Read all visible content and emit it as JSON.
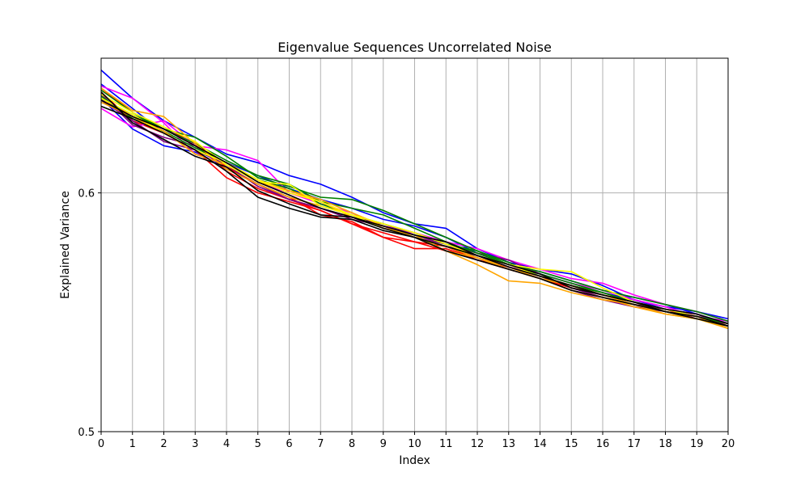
{
  "chart_data": {
    "type": "line",
    "title": "Eigenvalue Sequences Uncorrelated Noise",
    "xlabel": "Index",
    "ylabel": "Explained Variance",
    "xlim": [
      0,
      20
    ],
    "ylim": [
      0.5,
      0.665
    ],
    "yscale": "log",
    "x_ticks": [
      0,
      1,
      2,
      3,
      4,
      5,
      6,
      7,
      8,
      9,
      10,
      11,
      12,
      13,
      14,
      15,
      16,
      17,
      18,
      19,
      20
    ],
    "y_ticks": [
      0.5,
      0.6
    ],
    "y_tick_labels": [
      "0.5",
      "0.6"
    ],
    "grid": true,
    "legend": "none",
    "x": [
      0,
      1,
      2,
      3,
      4,
      5,
      6,
      7,
      8,
      9,
      10,
      11,
      12,
      13,
      14,
      15,
      16,
      17,
      18,
      19,
      20
    ],
    "series": [
      {
        "color": "#0000ff",
        "values": [
          0.659,
          0.645,
          0.634,
          0.626,
          0.618,
          0.614,
          0.608,
          0.604,
          0.598,
          0.591,
          0.586,
          0.584,
          0.575,
          0.569,
          0.566,
          0.564,
          0.559,
          0.553,
          0.55,
          0.548,
          0.545
        ]
      },
      {
        "color": "#0000ff",
        "values": [
          0.652,
          0.64,
          0.628,
          0.62,
          0.614,
          0.608,
          0.602,
          0.597,
          0.593,
          0.588,
          0.585,
          0.58,
          0.573,
          0.568,
          0.565,
          0.561,
          0.557,
          0.554,
          0.551,
          0.547,
          0.543
        ]
      },
      {
        "color": "#0000ff",
        "values": [
          0.645,
          0.63,
          0.622,
          0.619,
          0.612,
          0.604,
          0.598,
          0.594,
          0.59,
          0.584,
          0.58,
          0.576,
          0.572,
          0.567,
          0.564,
          0.56,
          0.556,
          0.553,
          0.549,
          0.546,
          0.543
        ]
      },
      {
        "color": "#ff0000",
        "values": [
          0.65,
          0.638,
          0.63,
          0.622,
          0.612,
          0.604,
          0.598,
          0.59,
          0.587,
          0.58,
          0.575,
          0.575,
          0.57,
          0.567,
          0.563,
          0.558,
          0.555,
          0.552,
          0.549,
          0.546,
          0.543
        ]
      },
      {
        "color": "#ff0000",
        "values": [
          0.645,
          0.636,
          0.63,
          0.624,
          0.61,
          0.602,
          0.597,
          0.592,
          0.586,
          0.582,
          0.578,
          0.574,
          0.571,
          0.567,
          0.563,
          0.559,
          0.556,
          0.552,
          0.549,
          0.545,
          0.542
        ]
      },
      {
        "color": "#ff0000",
        "values": [
          0.648,
          0.634,
          0.628,
          0.62,
          0.607,
          0.6,
          0.596,
          0.592,
          0.586,
          0.58,
          0.578,
          0.576,
          0.57,
          0.566,
          0.562,
          0.558,
          0.555,
          0.552,
          0.548,
          0.545,
          0.543
        ]
      },
      {
        "color": "#ff00ff",
        "values": [
          0.64,
          0.631,
          0.634,
          0.622,
          0.62,
          0.615,
          0.6,
          0.596,
          0.59,
          0.585,
          0.582,
          0.578,
          0.575,
          0.57,
          0.566,
          0.562,
          0.56,
          0.555,
          0.551,
          0.548,
          0.544
        ]
      },
      {
        "color": "#ff00ff",
        "values": [
          0.651,
          0.645,
          0.633,
          0.618,
          0.613,
          0.605,
          0.6,
          0.595,
          0.591,
          0.584,
          0.582,
          0.577,
          0.572,
          0.567,
          0.564,
          0.56,
          0.557,
          0.553,
          0.55,
          0.546,
          0.544
        ]
      },
      {
        "color": "#800080",
        "values": [
          0.647,
          0.632,
          0.626,
          0.622,
          0.611,
          0.604,
          0.597,
          0.593,
          0.588,
          0.585,
          0.58,
          0.577,
          0.573,
          0.57,
          0.564,
          0.558,
          0.554,
          0.551,
          0.549,
          0.547,
          0.542
        ]
      },
      {
        "color": "#800080",
        "values": [
          0.644,
          0.634,
          0.624,
          0.62,
          0.613,
          0.603,
          0.597,
          0.593,
          0.589,
          0.586,
          0.581,
          0.577,
          0.571,
          0.566,
          0.562,
          0.557,
          0.553,
          0.55,
          0.548,
          0.545,
          0.542
        ]
      },
      {
        "color": "#008000",
        "values": [
          0.645,
          0.637,
          0.63,
          0.626,
          0.617,
          0.607,
          0.603,
          0.598,
          0.597,
          0.592,
          0.586,
          0.58,
          0.574,
          0.568,
          0.565,
          0.561,
          0.557,
          0.554,
          0.551,
          0.548,
          0.544
        ]
      },
      {
        "color": "#008000",
        "values": [
          0.649,
          0.638,
          0.63,
          0.623,
          0.615,
          0.608,
          0.604,
          0.596,
          0.593,
          0.59,
          0.584,
          0.578,
          0.573,
          0.568,
          0.564,
          0.56,
          0.556,
          0.552,
          0.549,
          0.546,
          0.543
        ]
      },
      {
        "color": "#008000",
        "values": [
          0.646,
          0.635,
          0.629,
          0.621,
          0.614,
          0.606,
          0.602,
          0.595,
          0.59,
          0.586,
          0.582,
          0.577,
          0.574,
          0.569,
          0.563,
          0.559,
          0.556,
          0.552,
          0.548,
          0.546,
          0.542
        ]
      },
      {
        "color": "#ffa500",
        "values": [
          0.65,
          0.639,
          0.636,
          0.623,
          0.611,
          0.604,
          0.598,
          0.594,
          0.59,
          0.584,
          0.58,
          0.574,
          0.568,
          0.561,
          0.56,
          0.556,
          0.553,
          0.551,
          0.547,
          0.545,
          0.542
        ]
      },
      {
        "color": "#ffa500",
        "values": [
          0.643,
          0.636,
          0.629,
          0.618,
          0.613,
          0.605,
          0.601,
          0.597,
          0.591,
          0.585,
          0.58,
          0.576,
          0.571,
          0.567,
          0.562,
          0.559,
          0.555,
          0.551,
          0.548,
          0.546,
          0.541
        ]
      },
      {
        "color": "#ffa500",
        "values": [
          0.644,
          0.636,
          0.628,
          0.62,
          0.614,
          0.606,
          0.601,
          0.596,
          0.589,
          0.584,
          0.581,
          0.574,
          0.571,
          0.566,
          0.562,
          0.557,
          0.554,
          0.55,
          0.547,
          0.545,
          0.541
        ]
      },
      {
        "color": "#ffff00",
        "values": [
          0.647,
          0.638,
          0.631,
          0.624,
          0.613,
          0.605,
          0.604,
          0.594,
          0.59,
          0.586,
          0.582,
          0.577,
          0.572,
          0.568,
          0.566,
          0.565,
          0.558,
          0.552,
          0.549,
          0.546,
          0.542
        ]
      },
      {
        "color": "#ffff00",
        "values": [
          0.645,
          0.637,
          0.628,
          0.62,
          0.614,
          0.606,
          0.6,
          0.596,
          0.59,
          0.584,
          0.58,
          0.576,
          0.572,
          0.568,
          0.563,
          0.559,
          0.555,
          0.552,
          0.548,
          0.545,
          0.542
        ]
      },
      {
        "color": "#000000",
        "values": [
          0.648,
          0.633,
          0.625,
          0.617,
          0.612,
          0.601,
          0.595,
          0.59,
          0.589,
          0.584,
          0.58,
          0.576,
          0.572,
          0.568,
          0.564,
          0.558,
          0.555,
          0.552,
          0.548,
          0.546,
          0.542
        ]
      },
      {
        "color": "#000000",
        "values": [
          0.641,
          0.635,
          0.628,
          0.62,
          0.61,
          0.598,
          0.593,
          0.589,
          0.588,
          0.583,
          0.58,
          0.574,
          0.57,
          0.566,
          0.562,
          0.557,
          0.554,
          0.551,
          0.548,
          0.545,
          0.542
        ]
      },
      {
        "color": "#000000",
        "values": [
          0.644,
          0.636,
          0.63,
          0.622,
          0.614,
          0.605,
          0.599,
          0.593,
          0.589,
          0.585,
          0.581,
          0.578,
          0.572,
          0.567,
          0.563,
          0.559,
          0.555,
          0.552,
          0.549,
          0.547,
          0.543
        ]
      }
    ]
  }
}
